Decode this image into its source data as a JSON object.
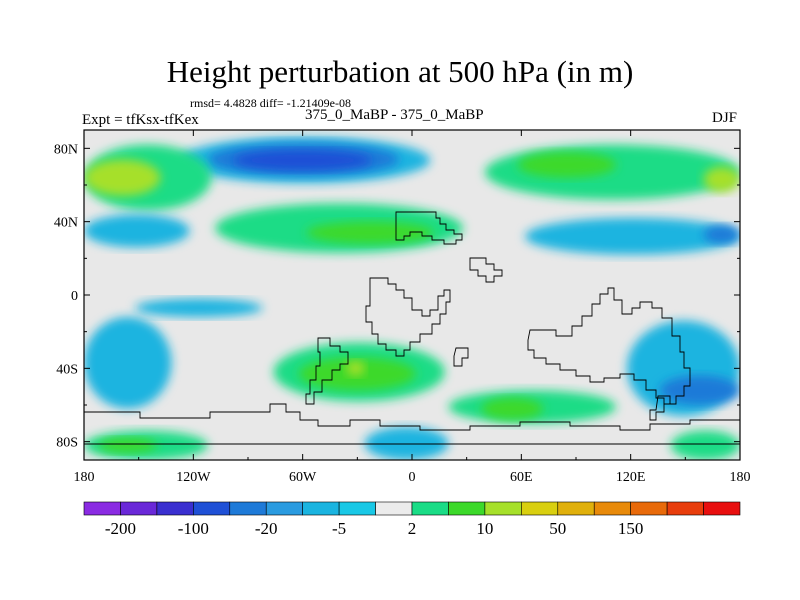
{
  "title": "Height perturbation at 500 hPa (in m)",
  "stats_text": "rmsd= 4.4828  diff= -1.21409e-08",
  "left_label": "Expt = tfKsx-tfKex",
  "center_label": "375_0_MaBP - 375_0_MaBP",
  "right_label": "DJF",
  "chart_data": {
    "type": "heatmap",
    "title": "Height perturbation at 500 hPa (in m)",
    "xlabel": "",
    "ylabel": "",
    "xlim": [
      -180,
      180
    ],
    "ylim": [
      -90,
      90
    ],
    "x_ticks": [
      {
        "value": -180,
        "label": "180"
      },
      {
        "value": -120,
        "label": "120W"
      },
      {
        "value": -60,
        "label": "60W"
      },
      {
        "value": 0,
        "label": "0"
      },
      {
        "value": 60,
        "label": "60E"
      },
      {
        "value": 120,
        "label": "120E"
      },
      {
        "value": 180,
        "label": "180"
      }
    ],
    "y_ticks": [
      {
        "value": 80,
        "label": "80N"
      },
      {
        "value": 40,
        "label": "40N"
      },
      {
        "value": 0,
        "label": "0"
      },
      {
        "value": -40,
        "label": "40S"
      },
      {
        "value": -80,
        "label": "80S"
      }
    ],
    "background_color": "#e8e8e8",
    "colorbar": {
      "colors": [
        "#8a2be2",
        "#6a28d8",
        "#3a2fd0",
        "#1f50d6",
        "#1e7ad8",
        "#2a9be0",
        "#1ab4e0",
        "#19c8e6",
        "#ececec",
        "#1adc86",
        "#3cd92a",
        "#a6e02a",
        "#d9cf10",
        "#e0b00c",
        "#e88a0a",
        "#e86a0a",
        "#e83d0c",
        "#e80f0f"
      ],
      "labels": [
        {
          "index": 1,
          "text": "-200"
        },
        {
          "index": 3,
          "text": "-100"
        },
        {
          "index": 5,
          "text": "-20"
        },
        {
          "index": 7,
          "text": "-5"
        },
        {
          "index": 9,
          "text": "2"
        },
        {
          "index": 11,
          "text": "10"
        },
        {
          "index": 13,
          "text": "50"
        },
        {
          "index": 15,
          "text": "150"
        }
      ]
    },
    "field_regions": [
      {
        "name": "arctic-band-cyan",
        "color": "#1ab4e0",
        "lon": [
          -128,
          10
        ],
        "lat": [
          61,
          86
        ]
      },
      {
        "name": "arctic-low-mid",
        "color": "#1e7ad8",
        "lon": [
          -112,
          -7
        ],
        "lat": [
          65,
          83
        ]
      },
      {
        "name": "arctic-low-core",
        "color": "#1f50d6",
        "lon": [
          -98,
          -22
        ],
        "lat": [
          68,
          79
        ]
      },
      {
        "name": "west-high-lat-green",
        "color": "#1adc86",
        "lon": [
          -180,
          -110
        ],
        "lat": [
          46,
          82
        ]
      },
      {
        "name": "west-high-lat-core",
        "color": "#a6e02a",
        "lon": [
          -180,
          -138
        ],
        "lat": [
          54,
          74
        ]
      },
      {
        "name": "eurasia-green-band",
        "color": "#1adc86",
        "lon": [
          40,
          180
        ],
        "lat": [
          52,
          82
        ]
      },
      {
        "name": "eurasia-green-core",
        "color": "#3cd92a",
        "lon": [
          58,
          112
        ],
        "lat": [
          64,
          78
        ]
      },
      {
        "name": "pacific-northeast-core",
        "color": "#a6e02a",
        "lon": [
          160,
          180
        ],
        "lat": [
          56,
          70
        ]
      },
      {
        "name": "north-america-cyan",
        "color": "#1ab4e0",
        "lon": [
          -180,
          -122
        ],
        "lat": [
          26,
          44
        ]
      },
      {
        "name": "north-atlantic-green",
        "color": "#1adc86",
        "lon": [
          -108,
          28
        ],
        "lat": [
          23,
          50
        ]
      },
      {
        "name": "north-atlantic-core",
        "color": "#3cd92a",
        "lon": [
          -58,
          12
        ],
        "lat": [
          28,
          40
        ]
      },
      {
        "name": "asia-cyan",
        "color": "#1ab4e0",
        "lon": [
          62,
          180
        ],
        "lat": [
          22,
          42
        ]
      },
      {
        "name": "asia-blue-core",
        "color": "#1e7ad8",
        "lon": [
          160,
          180
        ],
        "lat": [
          28,
          38
        ]
      },
      {
        "name": "tropical-east-pacific-cyan",
        "color": "#1ab4e0",
        "lon": [
          -152,
          -82
        ],
        "lat": [
          -12,
          -2
        ]
      },
      {
        "name": "south-atlantic-green",
        "color": "#1adc86",
        "lon": [
          -76,
          18
        ],
        "lat": [
          -58,
          -26
        ]
      },
      {
        "name": "south-atlantic-core",
        "color": "#3cd92a",
        "lon": [
          -62,
          2
        ],
        "lat": [
          -52,
          -34
        ]
      },
      {
        "name": "south-atlantic-yellow",
        "color": "#a6e02a",
        "lon": [
          -36,
          -26
        ],
        "lat": [
          -44,
          -36
        ]
      },
      {
        "name": "indian-ocean-green",
        "color": "#1adc86",
        "lon": [
          20,
          112
        ],
        "lat": [
          -70,
          -52
        ]
      },
      {
        "name": "indian-ocean-core",
        "color": "#3cd92a",
        "lon": [
          38,
          72
        ],
        "lat": [
          -68,
          -56
        ]
      },
      {
        "name": "south-pacific-cyan",
        "color": "#1ab4e0",
        "lon": [
          -180,
          -132
        ],
        "lat": [
          -62,
          -12
        ]
      },
      {
        "name": "southern-ocean-cyan",
        "color": "#1ab4e0",
        "lon": [
          118,
          180
        ],
        "lat": [
          -66,
          -14
        ]
      },
      {
        "name": "southern-ocean-blue",
        "color": "#1e7ad8",
        "lon": [
          136,
          180
        ],
        "lat": [
          -60,
          -44
        ]
      },
      {
        "name": "antarctic-green-west",
        "color": "#1adc86",
        "lon": [
          -180,
          -112
        ],
        "lat": [
          -90,
          -74
        ]
      },
      {
        "name": "antarctic-core-west",
        "color": "#3cd92a",
        "lon": [
          -172,
          -140
        ],
        "lat": [
          -86,
          -78
        ]
      },
      {
        "name": "antarctic-cyan-mid",
        "color": "#1ab4e0",
        "lon": [
          -26,
          20
        ],
        "lat": [
          -90,
          -72
        ]
      },
      {
        "name": "antarctic-green-east",
        "color": "#1adc86",
        "lon": [
          142,
          180
        ],
        "lat": [
          -90,
          -74
        ]
      }
    ]
  }
}
